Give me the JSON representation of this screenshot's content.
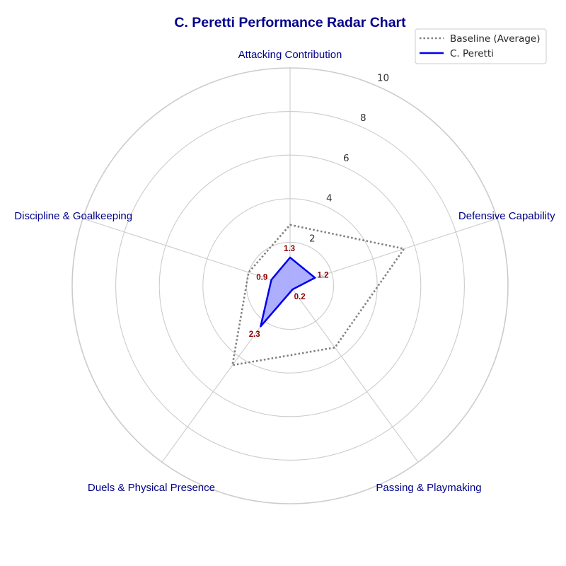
{
  "chart_data": {
    "type": "radar",
    "title": "C. Peretti Performance Radar Chart",
    "axes": [
      "Attacking Contribution",
      "Defensive Capability",
      "Passing & Playmaking",
      "Duels & Physical Presence",
      "Discipline & Goalkeeping"
    ],
    "rlim": [
      0,
      10
    ],
    "rticks": [
      2,
      4,
      6,
      8,
      10
    ],
    "series": [
      {
        "name": "Baseline (Average)",
        "values": [
          2.8,
          5.5,
          3.5,
          4.5,
          2.0
        ],
        "style": "dotted",
        "color": "#808080"
      },
      {
        "name": "C. Peretti",
        "values": [
          1.3,
          1.2,
          0.2,
          2.3,
          0.9
        ],
        "style": "solid",
        "color": "#0000ee",
        "fill": "#aaaaff",
        "labels": [
          "1.3",
          "1.2",
          "0.2",
          "2.3",
          "0.9"
        ]
      }
    ],
    "legend_position": "top-right",
    "grid": true
  },
  "colors": {
    "title": "#00008b",
    "axis_labels": "#00008b",
    "value_labels": "#8b0000",
    "grid": "#cccccc"
  }
}
